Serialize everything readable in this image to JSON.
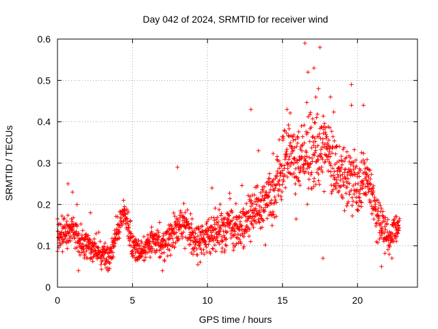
{
  "chart_data": {
    "type": "scatter",
    "title": "Day 042 of 2024, SRMTID for receiver wind",
    "xlabel": "GPS time / hours",
    "ylabel": "SRMTID / TECUs",
    "xlim": [
      0,
      24
    ],
    "ylim": [
      0,
      0.6
    ],
    "xticks": [
      0,
      5,
      10,
      15,
      20
    ],
    "yticks": [
      0,
      0.1,
      0.2,
      0.3,
      0.4,
      0.5,
      0.6
    ],
    "xtick_labels": [
      "0",
      "5",
      "10",
      "15",
      "20"
    ],
    "ytick_labels": [
      "0",
      "0.1",
      "0.2",
      "0.3",
      "0.4",
      "0.5",
      "0.6"
    ],
    "grid": true,
    "marker": "+",
    "color": "#ff0000",
    "series": [
      {
        "name": "SRMTID",
        "trend": [
          [
            0.0,
            0.12
          ],
          [
            0.5,
            0.13
          ],
          [
            1.0,
            0.14
          ],
          [
            1.5,
            0.11
          ],
          [
            2.0,
            0.1
          ],
          [
            2.5,
            0.09
          ],
          [
            3.0,
            0.08
          ],
          [
            3.5,
            0.07
          ],
          [
            4.0,
            0.14
          ],
          [
            4.5,
            0.18
          ],
          [
            5.0,
            0.1
          ],
          [
            5.5,
            0.09
          ],
          [
            6.0,
            0.1
          ],
          [
            6.5,
            0.11
          ],
          [
            7.0,
            0.1
          ],
          [
            7.5,
            0.12
          ],
          [
            8.0,
            0.14
          ],
          [
            8.5,
            0.15
          ],
          [
            9.0,
            0.12
          ],
          [
            9.5,
            0.11
          ],
          [
            10.0,
            0.12
          ],
          [
            10.5,
            0.13
          ],
          [
            11.0,
            0.14
          ],
          [
            11.5,
            0.15
          ],
          [
            12.0,
            0.14
          ],
          [
            12.5,
            0.16
          ],
          [
            13.0,
            0.18
          ],
          [
            13.5,
            0.19
          ],
          [
            14.0,
            0.21
          ],
          [
            14.5,
            0.25
          ],
          [
            15.0,
            0.3
          ],
          [
            15.5,
            0.31
          ],
          [
            16.0,
            0.3
          ],
          [
            16.5,
            0.31
          ],
          [
            17.0,
            0.33
          ],
          [
            17.5,
            0.35
          ],
          [
            18.0,
            0.31
          ],
          [
            18.5,
            0.3
          ],
          [
            19.0,
            0.27
          ],
          [
            19.5,
            0.26
          ],
          [
            20.0,
            0.23
          ],
          [
            20.5,
            0.27
          ],
          [
            21.0,
            0.22
          ],
          [
            21.5,
            0.16
          ],
          [
            22.0,
            0.12
          ],
          [
            22.5,
            0.14
          ],
          [
            22.8,
            0.14
          ]
        ],
        "spread": [
          [
            0.0,
            0.035
          ],
          [
            4.0,
            0.03
          ],
          [
            8.0,
            0.04
          ],
          [
            12.0,
            0.05
          ],
          [
            14.0,
            0.06
          ],
          [
            15.0,
            0.08
          ],
          [
            17.0,
            0.09
          ],
          [
            19.0,
            0.07
          ],
          [
            21.0,
            0.05
          ],
          [
            22.8,
            0.03
          ]
        ],
        "peaks": [
          [
            0.7,
            0.25
          ],
          [
            1.0,
            0.23
          ],
          [
            1.3,
            0.2
          ],
          [
            1.4,
            0.04
          ],
          [
            2.2,
            0.18
          ],
          [
            4.4,
            0.21
          ],
          [
            7.0,
            0.04
          ],
          [
            8.0,
            0.29
          ],
          [
            10.3,
            0.24
          ],
          [
            12.9,
            0.43
          ],
          [
            13.4,
            0.33
          ],
          [
            15.3,
            0.43
          ],
          [
            16.5,
            0.59
          ],
          [
            16.7,
            0.52
          ],
          [
            17.1,
            0.53
          ],
          [
            17.5,
            0.58
          ],
          [
            17.4,
            0.48
          ],
          [
            17.7,
            0.07
          ],
          [
            18.2,
            0.46
          ],
          [
            19.6,
            0.49
          ],
          [
            19.6,
            0.44
          ],
          [
            20.4,
            0.44
          ],
          [
            21.6,
            0.05
          ],
          [
            22.3,
            0.07
          ]
        ],
        "n_points": 1700
      }
    ]
  }
}
